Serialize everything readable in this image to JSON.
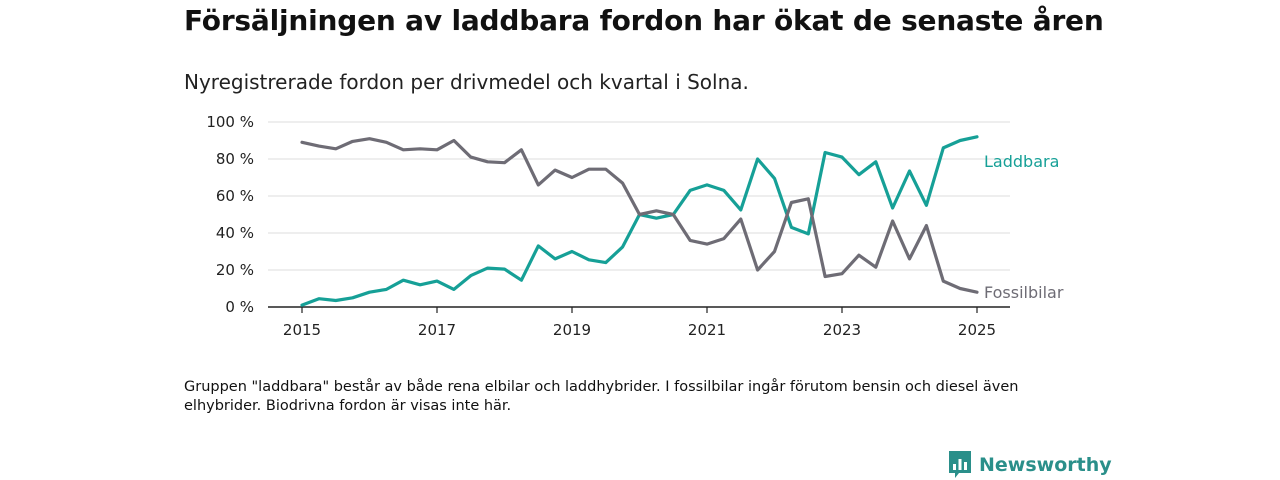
{
  "header": {
    "title": "Försäljningen av laddbara fordon har ökat de senaste åren",
    "subtitle": "Nyregistrerade fordon per drivmedel och kvartal i Solna."
  },
  "footer": {
    "note": "Gruppen \"laddbara\" består av både rena elbilar och laddhybrider. I fossilbilar ingår förutom bensin och diesel även elhybrider. Biodrivna fordon är visas inte här.",
    "brand": "Newsworthy",
    "brand_icon": "newsworthy-logo-icon"
  },
  "colors": {
    "laddbara": "#16a097",
    "fossilbilar": "#6e6c75",
    "grid": "#dcdcdc",
    "axis": "#222222",
    "brand": "#2a8f8a"
  },
  "chart_data": {
    "type": "line",
    "ylim": [
      0,
      100
    ],
    "xlim": [
      2015,
      2025
    ],
    "yticks": [
      0,
      20,
      40,
      60,
      80,
      100
    ],
    "ytick_labels": [
      "0 %",
      "20 %",
      "40 %",
      "60 %",
      "80 %",
      "100 %"
    ],
    "xticks": [
      2015,
      2017,
      2019,
      2021,
      2023,
      2025
    ],
    "xtick_labels": [
      "2015",
      "2017",
      "2019",
      "2021",
      "2023",
      "2025"
    ],
    "grid": true,
    "legend": "inline labels at line ends",
    "x": [
      "2015 Q1",
      "2015 Q2",
      "2015 Q3",
      "2015 Q4",
      "2016 Q1",
      "2016 Q2",
      "2016 Q3",
      "2016 Q4",
      "2017 Q1",
      "2017 Q2",
      "2017 Q3",
      "2017 Q4",
      "2018 Q1",
      "2018 Q2",
      "2018 Q3",
      "2018 Q4",
      "2019 Q1",
      "2019 Q2",
      "2019 Q3",
      "2019 Q4",
      "2020 Q1",
      "2020 Q2",
      "2020 Q3",
      "2020 Q4",
      "2021 Q1",
      "2021 Q2",
      "2021 Q3",
      "2021 Q4",
      "2022 Q1",
      "2022 Q2",
      "2022 Q3",
      "2022 Q4",
      "2023 Q1",
      "2023 Q2",
      "2023 Q3",
      "2023 Q4",
      "2024 Q1",
      "2024 Q2",
      "2024 Q3",
      "2024 Q4",
      "2025 Q1"
    ],
    "series": [
      {
        "name": "Laddbara",
        "values": [
          1,
          4.5,
          3.5,
          5,
          8,
          9.5,
          14.5,
          12,
          14,
          9.5,
          17,
          21,
          20.5,
          14.5,
          33,
          26,
          30,
          25.5,
          24,
          32.5,
          50,
          48,
          50,
          63,
          66,
          63,
          52.5,
          80,
          69.5,
          43,
          39.5,
          83.5,
          81,
          71.5,
          78.5,
          53.5,
          73.5,
          55,
          86,
          90,
          92
        ]
      },
      {
        "name": "Fossilbilar",
        "values": [
          89,
          87,
          85.5,
          89.5,
          91,
          89,
          85,
          85.5,
          85,
          90,
          81,
          78.5,
          78,
          85,
          66,
          74,
          70,
          74.5,
          74.5,
          67,
          50,
          52,
          50,
          36,
          34,
          37,
          47.5,
          20,
          30,
          56.5,
          58.5,
          16.5,
          18,
          28,
          21.5,
          46.5,
          26,
          44,
          14,
          10,
          8
        ]
      }
    ]
  }
}
